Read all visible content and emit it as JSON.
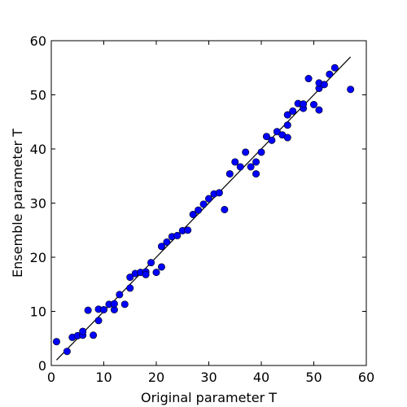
{
  "chart_data": {
    "type": "scatter",
    "xlabel": "Original parameter T",
    "ylabel": "Ensemble parameter T",
    "xlim": [
      0,
      60
    ],
    "ylim": [
      0,
      60
    ],
    "xticks": [
      0,
      10,
      20,
      30,
      40,
      50,
      60
    ],
    "yticks": [
      0,
      10,
      20,
      30,
      40,
      50,
      60
    ],
    "grid": false,
    "reference_line": {
      "x": [
        1,
        57
      ],
      "y": [
        1,
        57
      ],
      "color": "#000000"
    },
    "marker_color": "#0000ff",
    "points": [
      {
        "x": 1,
        "y": 4.4
      },
      {
        "x": 3,
        "y": 2.6
      },
      {
        "x": 4,
        "y": 5.2
      },
      {
        "x": 5,
        "y": 5.5
      },
      {
        "x": 6,
        "y": 5.6
      },
      {
        "x": 6,
        "y": 6.3
      },
      {
        "x": 7,
        "y": 10.2
      },
      {
        "x": 8,
        "y": 5.6
      },
      {
        "x": 9,
        "y": 8.3
      },
      {
        "x": 9,
        "y": 10.4
      },
      {
        "x": 10,
        "y": 10.3
      },
      {
        "x": 11,
        "y": 11.3
      },
      {
        "x": 12,
        "y": 10.3
      },
      {
        "x": 12,
        "y": 11.4
      },
      {
        "x": 13,
        "y": 13.1
      },
      {
        "x": 14,
        "y": 11.3
      },
      {
        "x": 15,
        "y": 14.3
      },
      {
        "x": 15,
        "y": 16.3
      },
      {
        "x": 16,
        "y": 17.0
      },
      {
        "x": 17,
        "y": 17.2
      },
      {
        "x": 18,
        "y": 17.3
      },
      {
        "x": 18,
        "y": 16.8
      },
      {
        "x": 19,
        "y": 19.0
      },
      {
        "x": 20,
        "y": 17.2
      },
      {
        "x": 21,
        "y": 18.2
      },
      {
        "x": 21,
        "y": 22.0
      },
      {
        "x": 22,
        "y": 22.8
      },
      {
        "x": 23,
        "y": 23.8
      },
      {
        "x": 24,
        "y": 24.0
      },
      {
        "x": 25,
        "y": 24.9
      },
      {
        "x": 26,
        "y": 25.0
      },
      {
        "x": 27,
        "y": 27.9
      },
      {
        "x": 28,
        "y": 28.7
      },
      {
        "x": 29,
        "y": 29.8
      },
      {
        "x": 30,
        "y": 30.8
      },
      {
        "x": 31,
        "y": 31.7
      },
      {
        "x": 32,
        "y": 31.9
      },
      {
        "x": 33,
        "y": 28.8
      },
      {
        "x": 34,
        "y": 35.4
      },
      {
        "x": 35,
        "y": 37.6
      },
      {
        "x": 36,
        "y": 36.7
      },
      {
        "x": 37,
        "y": 39.4
      },
      {
        "x": 38,
        "y": 36.7
      },
      {
        "x": 39,
        "y": 35.4
      },
      {
        "x": 39,
        "y": 37.6
      },
      {
        "x": 40,
        "y": 39.4
      },
      {
        "x": 41,
        "y": 42.3
      },
      {
        "x": 42,
        "y": 41.6
      },
      {
        "x": 43,
        "y": 43.2
      },
      {
        "x": 44,
        "y": 42.6
      },
      {
        "x": 45,
        "y": 42.1
      },
      {
        "x": 45,
        "y": 44.4
      },
      {
        "x": 45,
        "y": 46.3
      },
      {
        "x": 46,
        "y": 47.0
      },
      {
        "x": 47,
        "y": 48.4
      },
      {
        "x": 48,
        "y": 47.5
      },
      {
        "x": 48,
        "y": 48.3
      },
      {
        "x": 49,
        "y": 53.0
      },
      {
        "x": 50,
        "y": 48.2
      },
      {
        "x": 51,
        "y": 47.2
      },
      {
        "x": 51,
        "y": 51.2
      },
      {
        "x": 51,
        "y": 52.2
      },
      {
        "x": 52,
        "y": 51.9
      },
      {
        "x": 53,
        "y": 53.8
      },
      {
        "x": 54,
        "y": 55.0
      },
      {
        "x": 57,
        "y": 51.0
      }
    ]
  }
}
